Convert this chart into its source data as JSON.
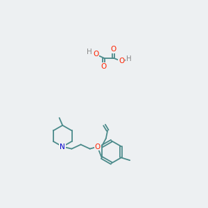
{
  "bg_color": "#edf0f2",
  "bond_color": "#4a8a8a",
  "atom_colors": {
    "O": "#ff2200",
    "N": "#0000cc",
    "H": "#888888",
    "C": "#4a8a8a"
  },
  "font_size_atom": 7.5,
  "line_width": 1.3
}
